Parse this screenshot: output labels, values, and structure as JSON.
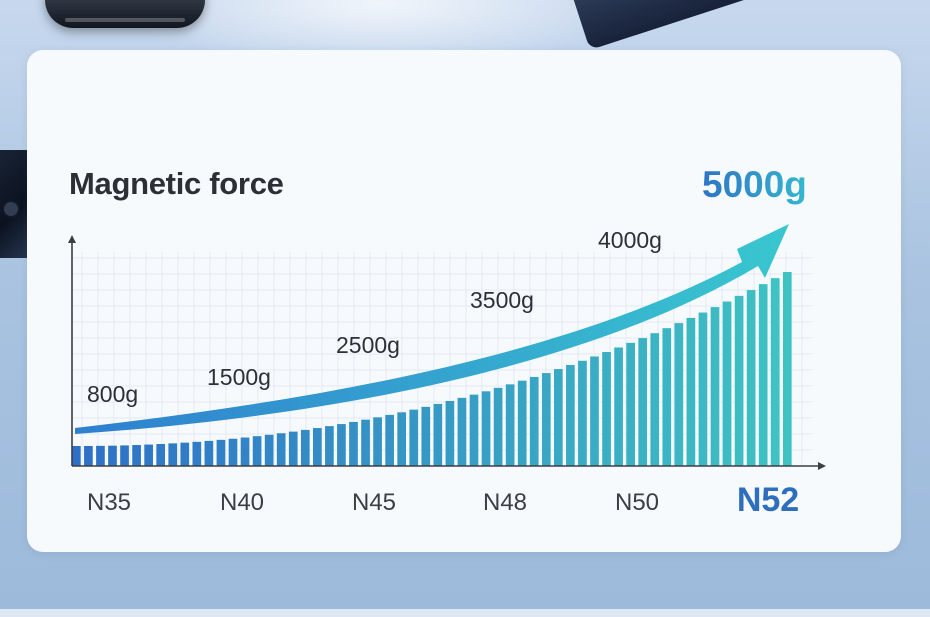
{
  "colors": {
    "bar_start": "#2e6fc7",
    "bar_end": "#3ec4c2",
    "arrow_start": "#2f7fcf",
    "arrow_end": "#39c7cf",
    "title": "#2b2f36",
    "highlight": "#2e6fbd"
  },
  "chart_data": {
    "type": "bar",
    "title": "Magnetic force",
    "headline_value": "5000g",
    "categories": [
      "N35",
      "N40",
      "N45",
      "N48",
      "N50",
      "N52"
    ],
    "highlighted_category": "N52",
    "values": [
      800,
      1500,
      2500,
      3500,
      4000,
      5000
    ],
    "value_labels": [
      "800g",
      "1500g",
      "2500g",
      "3500g",
      "4000g",
      "5000g"
    ],
    "unit": "g",
    "trend_arrow": true,
    "grid": true,
    "xlabel": "",
    "ylabel": ""
  }
}
